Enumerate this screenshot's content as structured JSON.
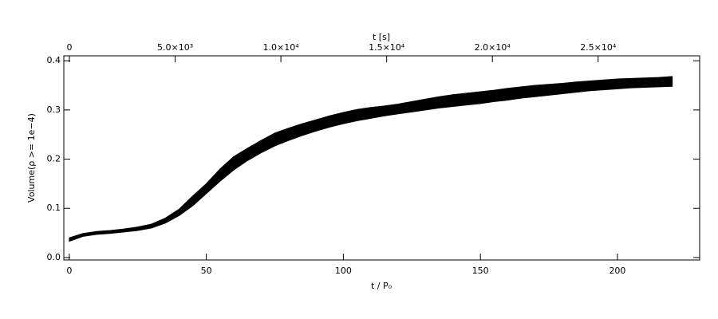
{
  "chart_data": {
    "type": "band",
    "xlabel": "t / P₀",
    "ylabel": "Volume(ρ >= 1e−4)",
    "x2label": "t [s]",
    "x": [
      0,
      5,
      10,
      15,
      20,
      25,
      30,
      35,
      40,
      45,
      50,
      55,
      60,
      65,
      70,
      75,
      80,
      85,
      90,
      95,
      100,
      105,
      110,
      115,
      120,
      125,
      130,
      135,
      140,
      145,
      150,
      155,
      160,
      165,
      170,
      175,
      180,
      185,
      190,
      195,
      200,
      205,
      210,
      215,
      220
    ],
    "series": [
      {
        "color": "#000000",
        "values": [
          0.04,
          0.049,
          0.053,
          0.055,
          0.058,
          0.062,
          0.068,
          0.08,
          0.098,
          0.125,
          0.15,
          0.18,
          0.205,
          0.222,
          0.238,
          0.253,
          0.263,
          0.272,
          0.28,
          0.288,
          0.295,
          0.301,
          0.305,
          0.308,
          0.312,
          0.317,
          0.322,
          0.327,
          0.331,
          0.334,
          0.337,
          0.34,
          0.344,
          0.347,
          0.35,
          0.352,
          0.354,
          0.357,
          0.359,
          0.361,
          0.363,
          0.364,
          0.365,
          0.366,
          0.368
        ]
      },
      {
        "color": "#000000",
        "values": [
          0.033,
          0.043,
          0.047,
          0.049,
          0.052,
          0.055,
          0.06,
          0.07,
          0.085,
          0.105,
          0.13,
          0.155,
          0.178,
          0.197,
          0.213,
          0.227,
          0.238,
          0.248,
          0.257,
          0.265,
          0.272,
          0.278,
          0.283,
          0.288,
          0.292,
          0.296,
          0.3,
          0.304,
          0.307,
          0.31,
          0.313,
          0.317,
          0.32,
          0.324,
          0.327,
          0.33,
          0.333,
          0.336,
          0.339,
          0.341,
          0.343,
          0.345,
          0.346,
          0.347,
          0.348
        ]
      }
    ],
    "xlim": [
      -2,
      230
    ],
    "xticks": [
      0,
      50,
      100,
      150,
      200
    ],
    "x2lim": [
      -264,
      29800
    ],
    "x2ticks": [
      0,
      {
        "value": 5000,
        "label": "5.0×10³"
      },
      {
        "value": 10000,
        "label": "1.0×10⁴"
      },
      {
        "value": 15000,
        "label": "1.5×10⁴"
      },
      {
        "value": 20000,
        "label": "2.0×10⁴"
      },
      {
        "value": 25000,
        "label": "2.5×10⁴"
      }
    ],
    "ylim": [
      -0.005,
      0.41
    ],
    "yticks": [
      {
        "value": 0,
        "label": "0.0"
      },
      0.1,
      0.2,
      0.3,
      0.4
    ],
    "grid": false
  }
}
